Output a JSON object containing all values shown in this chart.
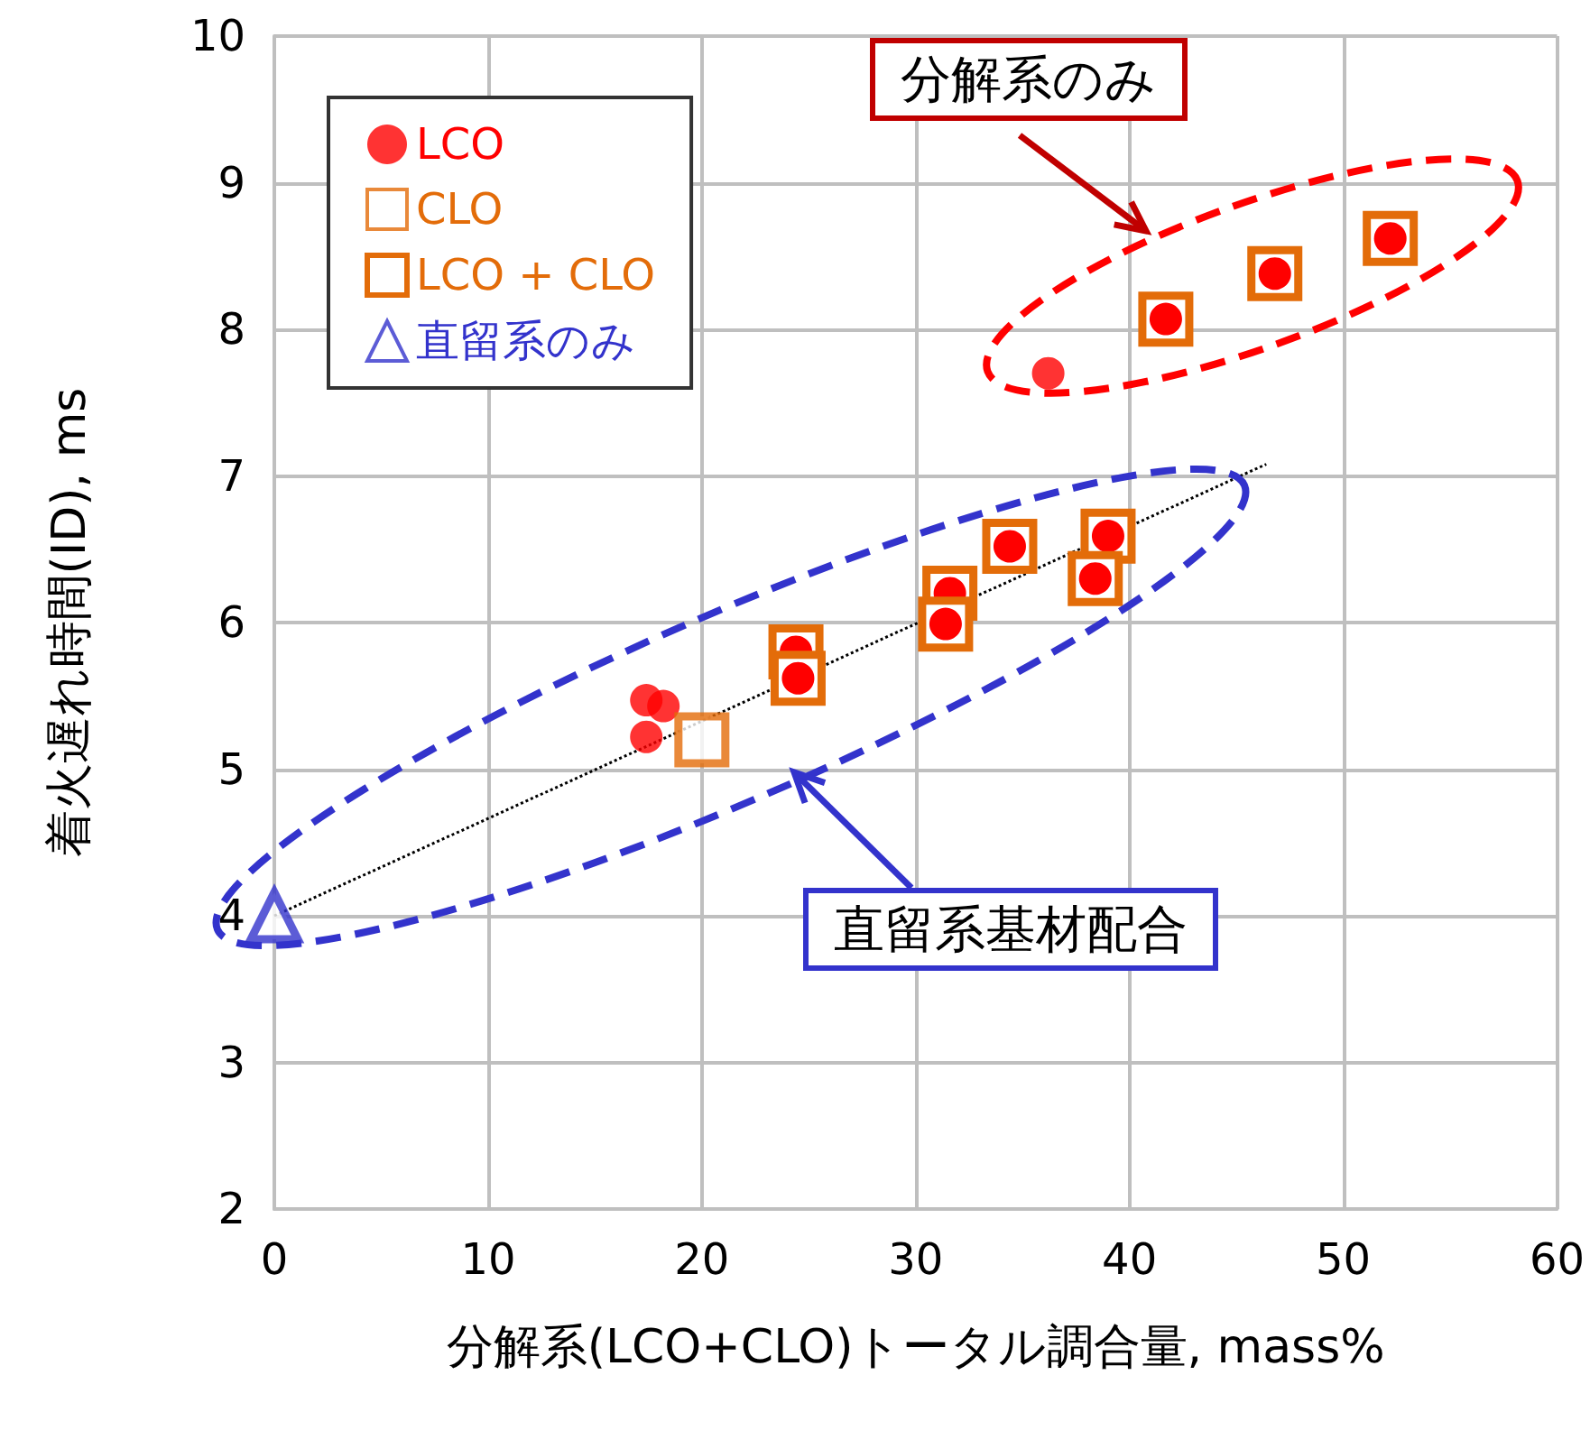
{
  "chart_data": {
    "type": "scatter",
    "xlabel": "分解系(LCO+CLO)トータル調合量, mass%",
    "ylabel": "着火遅れ時間(ID), ms",
    "xlim": [
      0,
      60
    ],
    "xticks": [
      0,
      10,
      20,
      30,
      40,
      50,
      60
    ],
    "ylim": [
      2,
      10
    ],
    "yticks": [
      2,
      3,
      4,
      5,
      6,
      7,
      8,
      9,
      10
    ],
    "grid": true,
    "legend": "top left",
    "annotations": [
      "分解系のみ",
      "直留系基材配合"
    ],
    "series": [
      {
        "name": "LCO",
        "color": "#ff0000",
        "marker": "circle",
        "x": [
          17.4,
          18.2,
          17.4,
          36.2
        ],
        "values": [
          5.47,
          5.43,
          5.22,
          7.7
        ]
      },
      {
        "name": "CLO",
        "color": "#e36c09",
        "marker": "square",
        "x": [
          20.0
        ],
        "values": [
          5.2
        ]
      },
      {
        "name": "LCO + CLO",
        "color": "#e36c09",
        "marker": "square",
        "x": [
          24.4,
          24.5,
          31.6,
          31.4,
          34.4,
          39.0,
          38.4,
          41.7,
          46.8,
          52.2
        ],
        "values": [
          5.8,
          5.62,
          6.2,
          5.99,
          6.52,
          6.59,
          6.3,
          8.07,
          8.38,
          8.62
        ]
      },
      {
        "name": "直留系のみ",
        "color": "#3333cc",
        "marker": "triangle",
        "x": [
          0
        ],
        "values": [
          4.0
        ]
      },
      {
        "type": "line",
        "color": "#000000",
        "marker": "none",
        "line_style": "dotted",
        "x": [
          0,
          46.4
        ],
        "values": [
          4.0,
          7.08
        ]
      }
    ]
  }
}
